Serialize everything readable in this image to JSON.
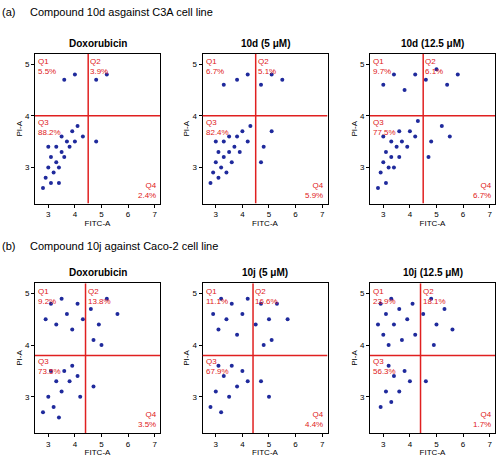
{
  "sections": [
    {
      "label": "(a)",
      "title": "Compound 10d asgainst C3A cell line"
    },
    {
      "label": "(b)",
      "title": "Compound 10j against Caco-2 cell line"
    }
  ],
  "chart_data": [
    {
      "type": "scatter",
      "title": "Doxorubicin",
      "x_label": "FITC-A",
      "y_label": "PI-A",
      "xlim": [
        2.5,
        7.2
      ],
      "xticks": [
        3,
        4,
        5,
        6,
        7
      ],
      "ylim": [
        2.3,
        5.2
      ],
      "yticks": [
        3,
        4,
        5
      ],
      "grid": false,
      "color": "#1f2a9c",
      "marker": "circle",
      "x_gate": 4.5,
      "y_gate": 4.0,
      "quadrants": [
        {
          "name": "Q1",
          "value": 5.5,
          "label": "5.5%"
        },
        {
          "name": "Q2",
          "value": 3.9,
          "label": "3.9%"
        },
        {
          "name": "Q3",
          "value": 88.2,
          "label": "88.2%"
        },
        {
          "name": "Q4",
          "value": 2.4,
          "label": "2.4%"
        }
      ],
      "points": [
        [
          2.8,
          2.6
        ],
        [
          2.9,
          2.8
        ],
        [
          3.0,
          3.0
        ],
        [
          3.1,
          2.7
        ],
        [
          3.1,
          3.2
        ],
        [
          3.2,
          2.9
        ],
        [
          3.3,
          3.1
        ],
        [
          3.3,
          3.4
        ],
        [
          3.4,
          3.0
        ],
        [
          3.5,
          3.3
        ],
        [
          3.5,
          3.6
        ],
        [
          3.6,
          3.2
        ],
        [
          3.7,
          3.5
        ],
        [
          3.8,
          3.4
        ],
        [
          3.9,
          3.7
        ],
        [
          4.0,
          3.5
        ],
        [
          4.1,
          3.8
        ],
        [
          3.0,
          3.4
        ],
        [
          3.4,
          2.7
        ],
        [
          4.3,
          3.6
        ],
        [
          3.6,
          4.7
        ],
        [
          4.0,
          4.8
        ],
        [
          4.8,
          4.7
        ],
        [
          5.2,
          4.8
        ],
        [
          4.8,
          3.5
        ]
      ]
    },
    {
      "type": "scatter",
      "title": "10d (5 μM)",
      "x_label": "FITC-A",
      "y_label": "PI-A",
      "xlim": [
        2.5,
        7.2
      ],
      "xticks": [
        3,
        4,
        5,
        6,
        7
      ],
      "ylim": [
        2.3,
        5.2
      ],
      "yticks": [
        3,
        4,
        5
      ],
      "grid": false,
      "color": "#1f2a9c",
      "marker": "circle",
      "x_gate": 4.5,
      "y_gate": 4.0,
      "quadrants": [
        {
          "name": "Q1",
          "value": 6.7,
          "label": "6.7%"
        },
        {
          "name": "Q2",
          "value": 5.1,
          "label": "5.1%"
        },
        {
          "name": "Q3",
          "value": 82.4,
          "label": "82.4%"
        },
        {
          "name": "Q4",
          "value": 5.9,
          "label": "5.9%"
        }
      ],
      "points": [
        [
          2.8,
          2.7
        ],
        [
          2.9,
          2.9
        ],
        [
          3.0,
          3.1
        ],
        [
          3.1,
          2.8
        ],
        [
          3.1,
          3.3
        ],
        [
          3.2,
          3.0
        ],
        [
          3.3,
          3.2
        ],
        [
          3.3,
          3.5
        ],
        [
          3.4,
          2.9
        ],
        [
          3.5,
          3.3
        ],
        [
          3.5,
          3.6
        ],
        [
          3.6,
          3.1
        ],
        [
          3.7,
          3.4
        ],
        [
          3.8,
          3.6
        ],
        [
          3.9,
          3.3
        ],
        [
          4.0,
          3.7
        ],
        [
          4.2,
          3.5
        ],
        [
          3.0,
          3.5
        ],
        [
          4.3,
          3.8
        ],
        [
          3.3,
          4.6
        ],
        [
          3.8,
          4.7
        ],
        [
          4.2,
          4.8
        ],
        [
          4.7,
          4.6
        ],
        [
          5.1,
          4.8
        ],
        [
          5.5,
          4.7
        ],
        [
          4.8,
          3.4
        ],
        [
          5.1,
          3.7
        ],
        [
          4.7,
          3.1
        ]
      ]
    },
    {
      "type": "scatter",
      "title": "10d (12.5 μM)",
      "x_label": "FITC-A",
      "y_label": "PI-A",
      "xlim": [
        2.5,
        7.2
      ],
      "xticks": [
        3,
        4,
        5,
        6,
        7
      ],
      "ylim": [
        2.3,
        5.2
      ],
      "yticks": [
        3,
        4,
        5
      ],
      "grid": false,
      "color": "#1f2a9c",
      "marker": "circle",
      "x_gate": 4.5,
      "y_gate": 4.0,
      "quadrants": [
        {
          "name": "Q1",
          "value": 9.7,
          "label": "9.7%"
        },
        {
          "name": "Q2",
          "value": 6.1,
          "label": "6.1%"
        },
        {
          "name": "Q3",
          "value": 77.5,
          "label": "77.5%"
        },
        {
          "name": "Q4",
          "value": 6.7,
          "label": "6.7%"
        }
      ],
      "points": [
        [
          2.8,
          2.6
        ],
        [
          2.9,
          2.9
        ],
        [
          3.0,
          3.1
        ],
        [
          3.1,
          2.7
        ],
        [
          3.1,
          3.3
        ],
        [
          3.2,
          3.0
        ],
        [
          3.3,
          3.2
        ],
        [
          3.3,
          3.5
        ],
        [
          3.4,
          3.0
        ],
        [
          3.5,
          3.4
        ],
        [
          3.6,
          3.7
        ],
        [
          3.6,
          3.2
        ],
        [
          3.7,
          3.5
        ],
        [
          3.9,
          3.4
        ],
        [
          4.0,
          3.7
        ],
        [
          4.2,
          3.6
        ],
        [
          3.0,
          3.6
        ],
        [
          4.3,
          3.9
        ],
        [
          3.0,
          4.6
        ],
        [
          3.4,
          4.8
        ],
        [
          3.8,
          4.5
        ],
        [
          4.2,
          4.8
        ],
        [
          4.6,
          4.7
        ],
        [
          5.0,
          4.9
        ],
        [
          5.4,
          4.6
        ],
        [
          5.8,
          4.8
        ],
        [
          4.8,
          3.5
        ],
        [
          5.2,
          3.8
        ],
        [
          4.7,
          3.2
        ],
        [
          5.5,
          3.6
        ]
      ]
    },
    {
      "type": "scatter",
      "title": "Doxorubicin",
      "x_label": "FITC-A",
      "y_label": "PI-A",
      "xlim": [
        2.5,
        7.2
      ],
      "xticks": [
        3,
        4,
        5,
        6,
        7
      ],
      "ylim": [
        2.3,
        5.2
      ],
      "yticks": [
        3,
        4,
        5
      ],
      "grid": false,
      "color": "#1f2a9c",
      "marker": "circle",
      "x_gate": 4.4,
      "y_gate": 3.8,
      "quadrants": [
        {
          "name": "Q1",
          "value": 9.2,
          "label": "9.2%"
        },
        {
          "name": "Q2",
          "value": 13.8,
          "label": "13.8%"
        },
        {
          "name": "Q3",
          "value": 73.5,
          "label": "73.5%"
        },
        {
          "name": "Q4",
          "value": 3.5,
          "label": "3.5%"
        }
      ],
      "points": [
        [
          2.9,
          4.5
        ],
        [
          3.1,
          4.8
        ],
        [
          3.3,
          4.4
        ],
        [
          3.5,
          4.9
        ],
        [
          3.7,
          4.6
        ],
        [
          3.9,
          4.3
        ],
        [
          4.1,
          4.8
        ],
        [
          4.3,
          4.5
        ],
        [
          4.6,
          4.7
        ],
        [
          4.9,
          4.4
        ],
        [
          5.2,
          4.9
        ],
        [
          5.6,
          4.6
        ],
        [
          4.7,
          4.1
        ],
        [
          5.0,
          4.0
        ],
        [
          2.8,
          2.7
        ],
        [
          3.0,
          3.0
        ],
        [
          3.2,
          2.8
        ],
        [
          3.3,
          3.3
        ],
        [
          3.5,
          3.1
        ],
        [
          3.6,
          3.5
        ],
        [
          3.8,
          3.3
        ],
        [
          3.9,
          3.6
        ],
        [
          4.1,
          3.4
        ],
        [
          3.1,
          3.5
        ],
        [
          3.4,
          2.6
        ],
        [
          4.2,
          3.0
        ],
        [
          4.7,
          3.2
        ]
      ]
    },
    {
      "type": "scatter",
      "title": "10j (5 μM)",
      "x_label": "FITC-A",
      "y_label": "PI-A",
      "xlim": [
        2.5,
        7.2
      ],
      "xticks": [
        3,
        4,
        5,
        6,
        7
      ],
      "ylim": [
        2.3,
        5.2
      ],
      "yticks": [
        3,
        4,
        5
      ],
      "grid": false,
      "color": "#1f2a9c",
      "marker": "circle",
      "x_gate": 4.4,
      "y_gate": 3.8,
      "quadrants": [
        {
          "name": "Q1",
          "value": 11.1,
          "label": "11.1%"
        },
        {
          "name": "Q2",
          "value": 16.6,
          "label": "16.6%"
        },
        {
          "name": "Q3",
          "value": 67.9,
          "label": "67.9%"
        },
        {
          "name": "Q4",
          "value": 4.4,
          "label": "4.4%"
        }
      ],
      "points": [
        [
          2.9,
          4.6
        ],
        [
          3.1,
          4.3
        ],
        [
          3.2,
          4.9
        ],
        [
          3.4,
          4.5
        ],
        [
          3.6,
          4.8
        ],
        [
          3.8,
          4.2
        ],
        [
          4.0,
          4.6
        ],
        [
          4.2,
          4.9
        ],
        [
          4.5,
          4.4
        ],
        [
          4.7,
          4.8
        ],
        [
          5.0,
          4.5
        ],
        [
          5.3,
          4.8
        ],
        [
          5.7,
          4.5
        ],
        [
          4.8,
          4.0
        ],
        [
          5.1,
          4.1
        ],
        [
          2.8,
          2.8
        ],
        [
          3.0,
          3.1
        ],
        [
          3.2,
          2.7
        ],
        [
          3.3,
          3.4
        ],
        [
          3.5,
          3.0
        ],
        [
          3.6,
          3.6
        ],
        [
          3.8,
          3.2
        ],
        [
          4.0,
          3.5
        ],
        [
          4.2,
          3.3
        ],
        [
          3.1,
          3.6
        ],
        [
          4.7,
          3.3
        ],
        [
          5.0,
          3.0
        ]
      ]
    },
    {
      "type": "scatter",
      "title": "10j (12.5 μM)",
      "x_label": "FITC-A",
      "y_label": "PI-A",
      "xlim": [
        2.5,
        7.2
      ],
      "xticks": [
        3,
        4,
        5,
        6,
        7
      ],
      "ylim": [
        2.3,
        5.2
      ],
      "yticks": [
        3,
        4,
        5
      ],
      "grid": false,
      "color": "#1f2a9c",
      "marker": "circle",
      "x_gate": 4.4,
      "y_gate": 3.8,
      "quadrants": [
        {
          "name": "Q1",
          "value": 23.9,
          "label": "23.9%"
        },
        {
          "name": "Q2",
          "value": 18.1,
          "label": "18.1%"
        },
        {
          "name": "Q3",
          "value": 56.3,
          "label": "56.3%"
        },
        {
          "name": "Q4",
          "value": 1.7,
          "label": "1.7%"
        }
      ],
      "points": [
        [
          2.8,
          4.4
        ],
        [
          2.9,
          4.8
        ],
        [
          3.0,
          4.2
        ],
        [
          3.1,
          4.6
        ],
        [
          3.2,
          4.0
        ],
        [
          3.3,
          4.9
        ],
        [
          3.4,
          4.4
        ],
        [
          3.6,
          4.7
        ],
        [
          3.7,
          4.1
        ],
        [
          3.9,
          4.5
        ],
        [
          4.1,
          4.8
        ],
        [
          4.2,
          4.2
        ],
        [
          4.5,
          4.6
        ],
        [
          4.8,
          4.9
        ],
        [
          5.0,
          4.4
        ],
        [
          5.3,
          4.7
        ],
        [
          5.6,
          4.3
        ],
        [
          4.9,
          4.0
        ],
        [
          2.9,
          2.8
        ],
        [
          3.1,
          3.1
        ],
        [
          3.3,
          2.9
        ],
        [
          3.4,
          3.4
        ],
        [
          3.6,
          3.1
        ],
        [
          3.8,
          3.5
        ],
        [
          4.0,
          3.3
        ],
        [
          3.2,
          3.6
        ],
        [
          4.6,
          3.3
        ]
      ]
    }
  ]
}
